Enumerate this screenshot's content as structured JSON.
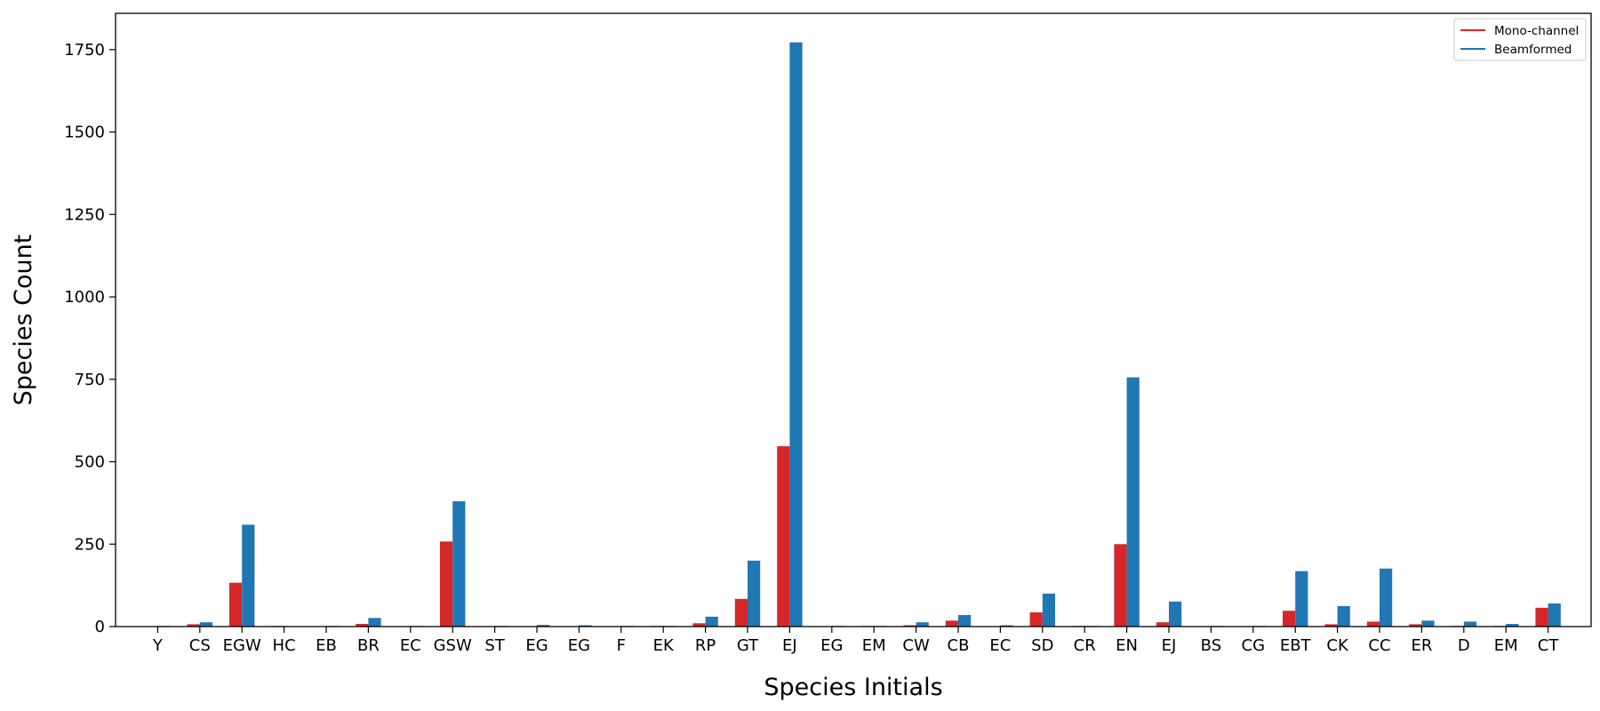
{
  "chart_data": {
    "type": "bar",
    "title": "",
    "xlabel": "Species Initials",
    "ylabel": "Species Count",
    "ylim": [
      0,
      1860
    ],
    "yticks": [
      0,
      250,
      500,
      750,
      1000,
      1250,
      1500,
      1750
    ],
    "grid": false,
    "legend_position": "top-right",
    "categories": [
      "Y",
      "CS",
      "EGW",
      "HC",
      "EB",
      "BR",
      "EC",
      "GSW",
      "ST",
      "EG",
      "EG",
      "F",
      "EK",
      "RP",
      "GT",
      "EJ",
      "EG",
      "EM",
      "CW",
      "CB",
      "EC",
      "SD",
      "CR",
      "EN",
      "EJ",
      "BS",
      "CG",
      "EBT",
      "CK",
      "CC",
      "ER",
      "D",
      "EM",
      "CT"
    ],
    "series": [
      {
        "name": "Mono-channel",
        "color": "#d62728",
        "values": [
          0,
          7,
          133,
          2,
          0,
          8,
          0,
          258,
          0,
          0,
          0,
          0,
          2,
          10,
          84,
          547,
          0,
          2,
          4,
          18,
          0,
          43,
          2,
          250,
          13,
          0,
          0,
          48,
          7,
          15,
          7,
          2,
          2,
          57
        ]
      },
      {
        "name": "Beamformed",
        "color": "#1f77b4",
        "values": [
          2,
          13,
          309,
          0,
          2,
          26,
          2,
          380,
          2,
          5,
          4,
          2,
          2,
          30,
          200,
          1772,
          2,
          2,
          13,
          35,
          4,
          100,
          2,
          756,
          76,
          2,
          2,
          168,
          62,
          176,
          18,
          15,
          8,
          70
        ]
      }
    ]
  }
}
